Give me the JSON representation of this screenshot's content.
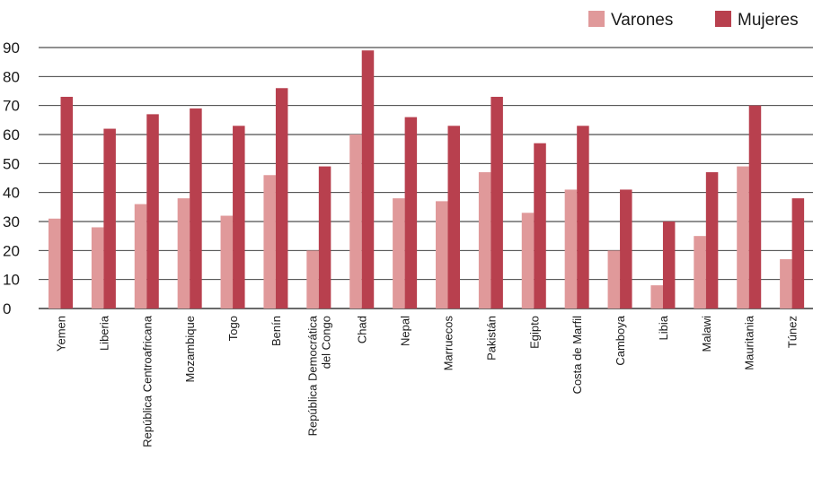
{
  "chart_data": {
    "type": "bar",
    "categories": [
      [
        "Yemen"
      ],
      [
        "Liberia"
      ],
      [
        "República Centroafricana"
      ],
      [
        "Mozambique"
      ],
      [
        "Togo"
      ],
      [
        "Benín"
      ],
      [
        "República Democrática",
        "del Congo"
      ],
      [
        "Chad"
      ],
      [
        "Nepal"
      ],
      [
        "Marruecos"
      ],
      [
        "Pakistán"
      ],
      [
        "Egipto"
      ],
      [
        "Costa de Marfil"
      ],
      [
        "Camboya"
      ],
      [
        "Libia"
      ],
      [
        "Malawi"
      ],
      [
        "Mauritania"
      ],
      [
        "Túnez"
      ]
    ],
    "series": [
      {
        "name": "Varones",
        "color": "#e0999a",
        "values": [
          31,
          28,
          36,
          38,
          32,
          46,
          20,
          60,
          38,
          37,
          47,
          33,
          41,
          20,
          8,
          25,
          49,
          17
        ]
      },
      {
        "name": "Mujeres",
        "color": "#b8404e",
        "values": [
          73,
          62,
          67,
          69,
          63,
          76,
          49,
          89,
          66,
          63,
          73,
          57,
          63,
          41,
          30,
          47,
          70,
          38
        ]
      }
    ],
    "ylim": [
      0,
      90
    ],
    "yticks": [
      "0",
      "10",
      "20",
      "30",
      "40",
      "50",
      "60",
      "70",
      "80",
      "90"
    ],
    "grid": true,
    "legend_position": "top-right"
  }
}
